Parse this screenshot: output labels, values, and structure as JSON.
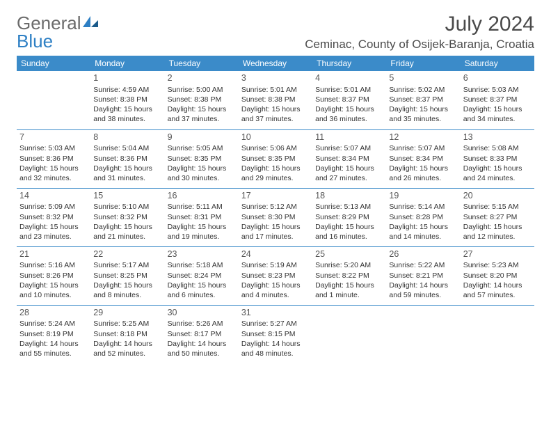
{
  "logo": {
    "text1": "General",
    "text2": "Blue"
  },
  "title": "July 2024",
  "location": "Ceminac, County of Osijek-Baranja, Croatia",
  "day_headers": [
    "Sunday",
    "Monday",
    "Tuesday",
    "Wednesday",
    "Thursday",
    "Friday",
    "Saturday"
  ],
  "colors": {
    "header_bg": "#3b8bc9",
    "header_text": "#ffffff",
    "border": "#3b8bc9",
    "title_color": "#4a4a4a",
    "body_text": "#333333",
    "logo_gray": "#6b6b6b",
    "logo_blue": "#2d7fc4"
  },
  "weeks": [
    [
      null,
      {
        "n": "1",
        "sr": "Sunrise: 4:59 AM",
        "ss": "Sunset: 8:38 PM",
        "dl": "Daylight: 15 hours and 38 minutes."
      },
      {
        "n": "2",
        "sr": "Sunrise: 5:00 AM",
        "ss": "Sunset: 8:38 PM",
        "dl": "Daylight: 15 hours and 37 minutes."
      },
      {
        "n": "3",
        "sr": "Sunrise: 5:01 AM",
        "ss": "Sunset: 8:38 PM",
        "dl": "Daylight: 15 hours and 37 minutes."
      },
      {
        "n": "4",
        "sr": "Sunrise: 5:01 AM",
        "ss": "Sunset: 8:37 PM",
        "dl": "Daylight: 15 hours and 36 minutes."
      },
      {
        "n": "5",
        "sr": "Sunrise: 5:02 AM",
        "ss": "Sunset: 8:37 PM",
        "dl": "Daylight: 15 hours and 35 minutes."
      },
      {
        "n": "6",
        "sr": "Sunrise: 5:03 AM",
        "ss": "Sunset: 8:37 PM",
        "dl": "Daylight: 15 hours and 34 minutes."
      }
    ],
    [
      {
        "n": "7",
        "sr": "Sunrise: 5:03 AM",
        "ss": "Sunset: 8:36 PM",
        "dl": "Daylight: 15 hours and 32 minutes."
      },
      {
        "n": "8",
        "sr": "Sunrise: 5:04 AM",
        "ss": "Sunset: 8:36 PM",
        "dl": "Daylight: 15 hours and 31 minutes."
      },
      {
        "n": "9",
        "sr": "Sunrise: 5:05 AM",
        "ss": "Sunset: 8:35 PM",
        "dl": "Daylight: 15 hours and 30 minutes."
      },
      {
        "n": "10",
        "sr": "Sunrise: 5:06 AM",
        "ss": "Sunset: 8:35 PM",
        "dl": "Daylight: 15 hours and 29 minutes."
      },
      {
        "n": "11",
        "sr": "Sunrise: 5:07 AM",
        "ss": "Sunset: 8:34 PM",
        "dl": "Daylight: 15 hours and 27 minutes."
      },
      {
        "n": "12",
        "sr": "Sunrise: 5:07 AM",
        "ss": "Sunset: 8:34 PM",
        "dl": "Daylight: 15 hours and 26 minutes."
      },
      {
        "n": "13",
        "sr": "Sunrise: 5:08 AM",
        "ss": "Sunset: 8:33 PM",
        "dl": "Daylight: 15 hours and 24 minutes."
      }
    ],
    [
      {
        "n": "14",
        "sr": "Sunrise: 5:09 AM",
        "ss": "Sunset: 8:32 PM",
        "dl": "Daylight: 15 hours and 23 minutes."
      },
      {
        "n": "15",
        "sr": "Sunrise: 5:10 AM",
        "ss": "Sunset: 8:32 PM",
        "dl": "Daylight: 15 hours and 21 minutes."
      },
      {
        "n": "16",
        "sr": "Sunrise: 5:11 AM",
        "ss": "Sunset: 8:31 PM",
        "dl": "Daylight: 15 hours and 19 minutes."
      },
      {
        "n": "17",
        "sr": "Sunrise: 5:12 AM",
        "ss": "Sunset: 8:30 PM",
        "dl": "Daylight: 15 hours and 17 minutes."
      },
      {
        "n": "18",
        "sr": "Sunrise: 5:13 AM",
        "ss": "Sunset: 8:29 PM",
        "dl": "Daylight: 15 hours and 16 minutes."
      },
      {
        "n": "19",
        "sr": "Sunrise: 5:14 AM",
        "ss": "Sunset: 8:28 PM",
        "dl": "Daylight: 15 hours and 14 minutes."
      },
      {
        "n": "20",
        "sr": "Sunrise: 5:15 AM",
        "ss": "Sunset: 8:27 PM",
        "dl": "Daylight: 15 hours and 12 minutes."
      }
    ],
    [
      {
        "n": "21",
        "sr": "Sunrise: 5:16 AM",
        "ss": "Sunset: 8:26 PM",
        "dl": "Daylight: 15 hours and 10 minutes."
      },
      {
        "n": "22",
        "sr": "Sunrise: 5:17 AM",
        "ss": "Sunset: 8:25 PM",
        "dl": "Daylight: 15 hours and 8 minutes."
      },
      {
        "n": "23",
        "sr": "Sunrise: 5:18 AM",
        "ss": "Sunset: 8:24 PM",
        "dl": "Daylight: 15 hours and 6 minutes."
      },
      {
        "n": "24",
        "sr": "Sunrise: 5:19 AM",
        "ss": "Sunset: 8:23 PM",
        "dl": "Daylight: 15 hours and 4 minutes."
      },
      {
        "n": "25",
        "sr": "Sunrise: 5:20 AM",
        "ss": "Sunset: 8:22 PM",
        "dl": "Daylight: 15 hours and 1 minute."
      },
      {
        "n": "26",
        "sr": "Sunrise: 5:22 AM",
        "ss": "Sunset: 8:21 PM",
        "dl": "Daylight: 14 hours and 59 minutes."
      },
      {
        "n": "27",
        "sr": "Sunrise: 5:23 AM",
        "ss": "Sunset: 8:20 PM",
        "dl": "Daylight: 14 hours and 57 minutes."
      }
    ],
    [
      {
        "n": "28",
        "sr": "Sunrise: 5:24 AM",
        "ss": "Sunset: 8:19 PM",
        "dl": "Daylight: 14 hours and 55 minutes."
      },
      {
        "n": "29",
        "sr": "Sunrise: 5:25 AM",
        "ss": "Sunset: 8:18 PM",
        "dl": "Daylight: 14 hours and 52 minutes."
      },
      {
        "n": "30",
        "sr": "Sunrise: 5:26 AM",
        "ss": "Sunset: 8:17 PM",
        "dl": "Daylight: 14 hours and 50 minutes."
      },
      {
        "n": "31",
        "sr": "Sunrise: 5:27 AM",
        "ss": "Sunset: 8:15 PM",
        "dl": "Daylight: 14 hours and 48 minutes."
      },
      null,
      null,
      null
    ]
  ]
}
